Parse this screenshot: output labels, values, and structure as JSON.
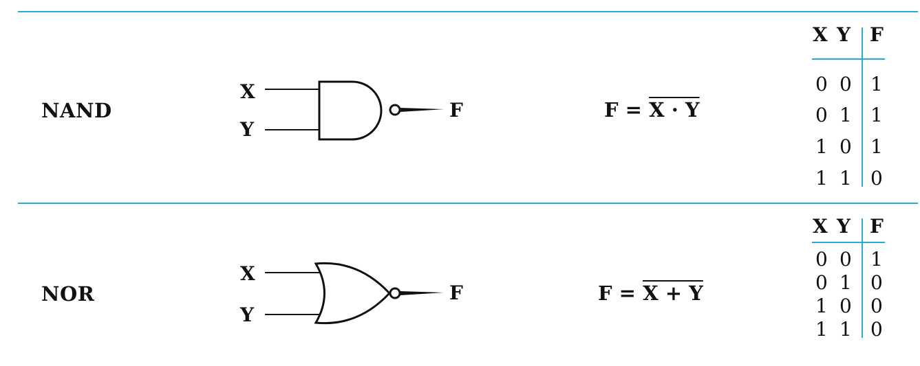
{
  "colors": {
    "accent": "#29a8df",
    "ink": "#111111"
  },
  "gates": [
    {
      "name": "NAND",
      "inputs": [
        "X",
        "Y"
      ],
      "output": "F",
      "formula_lhs": "F =",
      "formula_rhs": "X · Y",
      "table": {
        "headers": [
          "X",
          "Y",
          "F"
        ],
        "rows": [
          [
            "0",
            "0",
            "1"
          ],
          [
            "0",
            "1",
            "1"
          ],
          [
            "1",
            "0",
            "1"
          ],
          [
            "1",
            "1",
            "0"
          ]
        ]
      }
    },
    {
      "name": "NOR",
      "inputs": [
        "X",
        "Y"
      ],
      "output": "F",
      "formula_lhs": "F =",
      "formula_rhs": "X + Y",
      "table": {
        "headers": [
          "X",
          "Y",
          "F"
        ],
        "rows": [
          [
            "0",
            "0",
            "1"
          ],
          [
            "0",
            "1",
            "0"
          ],
          [
            "1",
            "0",
            "0"
          ],
          [
            "1",
            "1",
            "0"
          ]
        ]
      }
    }
  ]
}
